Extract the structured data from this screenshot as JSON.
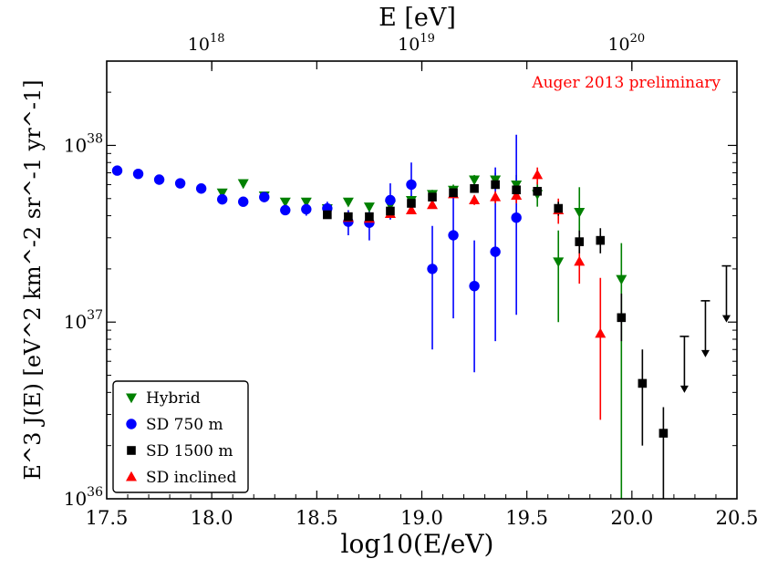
{
  "chart_data": {
    "type": "scatter",
    "x_axis": {
      "label": "log10(E/eV)",
      "range": [
        17.5,
        20.5
      ],
      "ticks": [
        17.5,
        18.0,
        18.5,
        19.0,
        19.5,
        20.0,
        20.5
      ],
      "tick_labels": [
        "17.5",
        "18.0",
        "18.5",
        "19.0",
        "19.5",
        "20.0",
        "20.5"
      ]
    },
    "top_axis": {
      "label": "E [eV]",
      "ticks": [
        18,
        19,
        20
      ],
      "tick_labels": [
        "10^18",
        "10^19",
        "10^20"
      ]
    },
    "y_axis": {
      "label": "E^3 J(E) [eV^2 km^-2 sr^-1 yr^-1]",
      "scale": "log",
      "range": [
        1e+36,
        3e+38
      ],
      "ticks": [
        36,
        37,
        38
      ],
      "tick_labels": [
        "10^36",
        "10^37",
        "10^38"
      ]
    },
    "annotation": {
      "text": "Auger 2013 preliminary",
      "color": "#ff0000"
    },
    "legend": {
      "position": "lower-left"
    },
    "series": [
      {
        "name": "Hybrid",
        "marker": "triangle-down",
        "color": "#008000",
        "points": [
          {
            "x": 18.05,
            "y": 5.4e+37,
            "lo": 5.2e+37,
            "hi": 5.6e+37
          },
          {
            "x": 18.15,
            "y": 6.1e+37,
            "lo": 5.9e+37,
            "hi": 6.3e+37
          },
          {
            "x": 18.25,
            "y": 5.2e+37,
            "lo": 5e+37,
            "hi": 5.4e+37
          },
          {
            "x": 18.35,
            "y": 4.8e+37,
            "lo": 4.6e+37,
            "hi": 5e+37
          },
          {
            "x": 18.45,
            "y": 4.8e+37,
            "lo": 4.6e+37,
            "hi": 5e+37
          },
          {
            "x": 18.55,
            "y": 4.4e+37,
            "lo": 4.2e+37,
            "hi": 4.6e+37
          },
          {
            "x": 18.65,
            "y": 4.8e+37,
            "lo": 4.6e+37,
            "hi": 5e+37
          },
          {
            "x": 18.75,
            "y": 4.5e+37,
            "lo": 4.3e+37,
            "hi": 4.7e+37
          },
          {
            "x": 18.85,
            "y": 4.6e+37,
            "lo": 4.4e+37,
            "hi": 4.9e+37
          },
          {
            "x": 18.95,
            "y": 4.9e+37,
            "lo": 4.6e+37,
            "hi": 5.2e+37
          },
          {
            "x": 19.05,
            "y": 5.3e+37,
            "lo": 5e+37,
            "hi": 5.6e+37
          },
          {
            "x": 19.15,
            "y": 5.6e+37,
            "lo": 5.3e+37,
            "hi": 6e+37
          },
          {
            "x": 19.25,
            "y": 6.4e+37,
            "lo": 6e+37,
            "hi": 6.8e+37
          },
          {
            "x": 19.35,
            "y": 6.4e+37,
            "lo": 5.8e+37,
            "hi": 7e+37
          },
          {
            "x": 19.45,
            "y": 6e+37,
            "lo": 5.2e+37,
            "hi": 6.8e+37
          },
          {
            "x": 19.55,
            "y": 5.3e+37,
            "lo": 4.5e+37,
            "hi": 6.2e+37
          },
          {
            "x": 19.65,
            "y": 2.2e+37,
            "lo": 1e+37,
            "hi": 3.3e+37
          },
          {
            "x": 19.75,
            "y": 4.2e+37,
            "lo": 2.9e+37,
            "hi": 5.8e+37
          },
          {
            "x": 19.95,
            "y": 1.75e+37,
            "lo": 1e+36,
            "hi": 2.8e+37
          }
        ]
      },
      {
        "name": "SD 750 m",
        "marker": "circle",
        "color": "#0000ff",
        "points": [
          {
            "x": 17.55,
            "y": 7.2e+37,
            "lo": 7e+37,
            "hi": 7.4e+37
          },
          {
            "x": 17.65,
            "y": 6.9e+37,
            "lo": 6.7e+37,
            "hi": 7.1e+37
          },
          {
            "x": 17.75,
            "y": 6.4e+37,
            "lo": 6.2e+37,
            "hi": 6.6e+37
          },
          {
            "x": 17.85,
            "y": 6.1e+37,
            "lo": 5.9e+37,
            "hi": 6.3e+37
          },
          {
            "x": 17.95,
            "y": 5.7e+37,
            "lo": 5.5e+37,
            "hi": 5.9e+37
          },
          {
            "x": 18.05,
            "y": 4.95e+37,
            "lo": 4.75e+37,
            "hi": 5.15e+37
          },
          {
            "x": 18.15,
            "y": 4.8e+37,
            "lo": 4.6e+37,
            "hi": 5e+37
          },
          {
            "x": 18.25,
            "y": 5.1e+37,
            "lo": 4.9e+37,
            "hi": 5.3e+37
          },
          {
            "x": 18.35,
            "y": 4.3e+37,
            "lo": 4.1e+37,
            "hi": 4.5e+37
          },
          {
            "x": 18.45,
            "y": 4.35e+37,
            "lo": 4e+37,
            "hi": 4.7e+37
          },
          {
            "x": 18.55,
            "y": 4.4e+37,
            "lo": 4.1e+37,
            "hi": 4.8e+37
          },
          {
            "x": 18.65,
            "y": 3.7e+37,
            "lo": 3.1e+37,
            "hi": 4.3e+37
          },
          {
            "x": 18.75,
            "y": 3.65e+37,
            "lo": 2.9e+37,
            "hi": 4.4e+37
          },
          {
            "x": 18.85,
            "y": 4.9e+37,
            "lo": 3.8e+37,
            "hi": 6.1e+37
          },
          {
            "x": 18.95,
            "y": 6e+37,
            "lo": 4.5e+37,
            "hi": 8e+37
          },
          {
            "x": 19.05,
            "y": 2e+37,
            "lo": 7e+36,
            "hi": 3.5e+37
          },
          {
            "x": 19.15,
            "y": 3.1e+37,
            "lo": 1.05e+37,
            "hi": 5.2e+37
          },
          {
            "x": 19.25,
            "y": 1.6e+37,
            "lo": 5.2e+36,
            "hi": 2.9e+37
          },
          {
            "x": 19.35,
            "y": 2.5e+37,
            "lo": 7.8e+36,
            "hi": 7.5e+37
          },
          {
            "x": 19.45,
            "y": 3.9e+37,
            "lo": 1.1e+37,
            "hi": 1.15e+38
          }
        ]
      },
      {
        "name": "SD 1500 m",
        "marker": "square",
        "color": "#000000",
        "points": [
          {
            "x": 18.55,
            "y": 4.05e+37,
            "lo": 3.95e+37,
            "hi": 4.15e+37
          },
          {
            "x": 18.65,
            "y": 3.95e+37,
            "lo": 3.85e+37,
            "hi": 4.05e+37
          },
          {
            "x": 18.75,
            "y": 3.95e+37,
            "lo": 3.85e+37,
            "hi": 4.05e+37
          },
          {
            "x": 18.85,
            "y": 4.25e+37,
            "lo": 4.15e+37,
            "hi": 4.35e+37
          },
          {
            "x": 18.95,
            "y": 4.7e+37,
            "lo": 4.6e+37,
            "hi": 4.8e+37
          },
          {
            "x": 19.05,
            "y": 5.1e+37,
            "lo": 5e+37,
            "hi": 5.2e+37
          },
          {
            "x": 19.15,
            "y": 5.4e+37,
            "lo": 5.3e+37,
            "hi": 5.5e+37
          },
          {
            "x": 19.25,
            "y": 5.7e+37,
            "lo": 5.55e+37,
            "hi": 5.85e+37
          },
          {
            "x": 19.35,
            "y": 6e+37,
            "lo": 5.8e+37,
            "hi": 6.2e+37
          },
          {
            "x": 19.45,
            "y": 5.6e+37,
            "lo": 5.35e+37,
            "hi": 5.85e+37
          },
          {
            "x": 19.55,
            "y": 5.5e+37,
            "lo": 5.2e+37,
            "hi": 5.8e+37
          },
          {
            "x": 19.65,
            "y": 4.4e+37,
            "lo": 4e+37,
            "hi": 4.8e+37
          },
          {
            "x": 19.75,
            "y": 2.85e+37,
            "lo": 2.45e+37,
            "hi": 3.3e+37
          },
          {
            "x": 19.85,
            "y": 2.9e+37,
            "lo": 2.45e+37,
            "hi": 3.4e+37
          },
          {
            "x": 19.95,
            "y": 1.06e+37,
            "lo": 7.8e+36,
            "hi": 1.45e+37
          },
          {
            "x": 20.05,
            "y": 4.5e+36,
            "lo": 2e+36,
            "hi": 7e+36
          },
          {
            "x": 20.15,
            "y": 2.35e+36,
            "lo": 7.5e+35,
            "hi": 3.3e+36
          }
        ]
      },
      {
        "name": "SD inclined",
        "marker": "triangle-up",
        "color": "#ff0000",
        "points": [
          {
            "x": 18.65,
            "y": 3.9e+37,
            "lo": 3.7e+37,
            "hi": 4.1e+37
          },
          {
            "x": 18.75,
            "y": 3.85e+37,
            "lo": 3.65e+37,
            "hi": 4.05e+37
          },
          {
            "x": 18.85,
            "y": 4.1e+37,
            "lo": 3.9e+37,
            "hi": 4.3e+37
          },
          {
            "x": 18.95,
            "y": 4.3e+37,
            "lo": 4.1e+37,
            "hi": 4.5e+37
          },
          {
            "x": 19.05,
            "y": 4.6e+37,
            "lo": 4.4e+37,
            "hi": 4.8e+37
          },
          {
            "x": 19.15,
            "y": 5.3e+37,
            "lo": 5.05e+37,
            "hi": 5.55e+37
          },
          {
            "x": 19.25,
            "y": 4.9e+37,
            "lo": 4.6e+37,
            "hi": 5.2e+37
          },
          {
            "x": 19.35,
            "y": 5.1e+37,
            "lo": 4.7e+37,
            "hi": 5.5e+37
          },
          {
            "x": 19.45,
            "y": 5.2e+37,
            "lo": 4.7e+37,
            "hi": 5.7e+37
          },
          {
            "x": 19.55,
            "y": 6.8e+37,
            "lo": 6e+37,
            "hi": 7.5e+37
          },
          {
            "x": 19.65,
            "y": 4.3e+37,
            "lo": 3.6e+37,
            "hi": 5e+37
          },
          {
            "x": 19.75,
            "y": 2.2e+37,
            "lo": 1.65e+37,
            "hi": 2.8e+37
          },
          {
            "x": 19.85,
            "y": 8.6e+36,
            "lo": 2.8e+36,
            "hi": 1.78e+37
          }
        ]
      }
    ],
    "upper_limits": {
      "series": "SD 1500 m",
      "marker": "down-arrow",
      "color": "#000000",
      "points": [
        {
          "x": 20.25,
          "y": 8.3e+36
        },
        {
          "x": 20.35,
          "y": 1.32e+37
        },
        {
          "x": 20.45,
          "y": 2.08e+37
        }
      ]
    }
  }
}
